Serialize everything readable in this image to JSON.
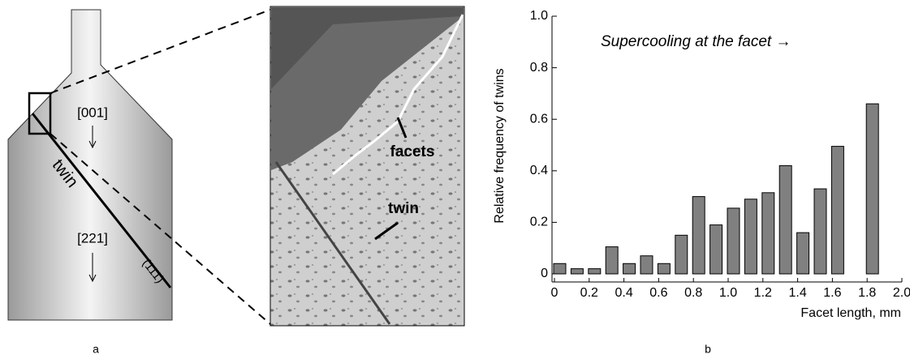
{
  "diagram": {
    "direction_top": "[001]",
    "direction_bottom": "[221]",
    "twin_label": "twin",
    "plane": "(111)",
    "panel": "a"
  },
  "micrograph": {
    "facets_label": "facets",
    "twin_label": "twin"
  },
  "chart_data": {
    "type": "bar",
    "panel": "b",
    "annotation": "Supercooling at the facet  →",
    "x_label": "Facet length, mm",
    "y_label": "Relative frequency of twins",
    "x": [
      0,
      0.1,
      0.2,
      0.3,
      0.4,
      0.5,
      0.6,
      0.7,
      0.8,
      0.9,
      1.0,
      1.1,
      1.2,
      1.3,
      1.4,
      1.5,
      1.6,
      1.8
    ],
    "values": [
      0.04,
      0.02,
      0.02,
      0.105,
      0.04,
      0.07,
      0.04,
      0.15,
      0.3,
      0.19,
      0.255,
      0.29,
      0.315,
      0.42,
      0.16,
      0.33,
      0.495,
      0.66
    ],
    "color": "#808080",
    "xlim": [
      0,
      2.0
    ],
    "xticks": [
      0,
      0.2,
      0.4,
      0.6,
      0.8,
      {
        "value": 1.0,
        "label": "1.0"
      },
      1.2,
      1.4,
      1.6,
      1.8,
      {
        "value": 2.0,
        "label": "2.0"
      }
    ],
    "ylim": [
      0,
      1.0
    ],
    "yticks": [
      0,
      0.2,
      0.4,
      0.6,
      0.8,
      {
        "value": 1.0,
        "label": "1.0"
      }
    ]
  }
}
